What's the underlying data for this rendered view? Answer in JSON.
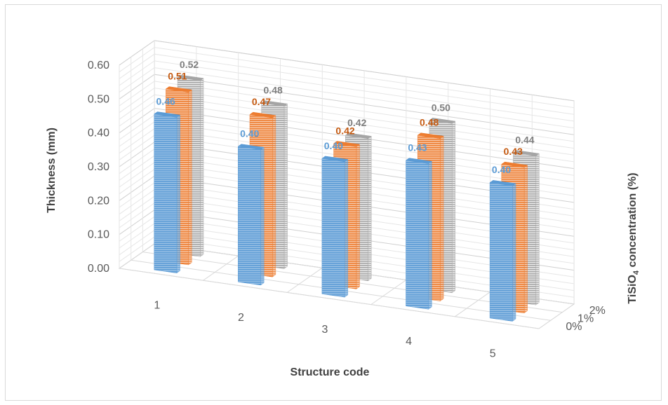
{
  "chart_data": {
    "type": "bar",
    "title": "",
    "xlabel": "Structure code",
    "ylabel": "Thickness (mm)",
    "zlabel": "TiSiO4 concentration  (%)",
    "zlabel_parts": {
      "pre": "TiSiO",
      "sub": "4",
      "post": " concentration  (%)"
    },
    "categories": [
      "1",
      "2",
      "3",
      "4",
      "5"
    ],
    "y_ticks": [
      "0.00",
      "0.10",
      "0.20",
      "0.30",
      "0.40",
      "0.50",
      "0.60"
    ],
    "ylim": [
      0,
      0.6
    ],
    "grid": true,
    "series": [
      {
        "name": "0%",
        "color": "#5b9bd5",
        "label_color": "#5b9bd5",
        "values": [
          0.46,
          0.4,
          0.4,
          0.43,
          0.4
        ],
        "labels": [
          "0.46",
          "0.40",
          "0.40",
          "0.43",
          "0.40"
        ]
      },
      {
        "name": "1%",
        "color": "#ed7d31",
        "label_color": "#c55a11",
        "values": [
          0.51,
          0.47,
          0.42,
          0.48,
          0.43
        ],
        "labels": [
          "0.51",
          "0.47",
          "0.42",
          "0.48",
          "0.43"
        ]
      },
      {
        "name": "2%",
        "color": "#a5a5a5",
        "label_color": "#7f7f7f",
        "values": [
          0.52,
          0.48,
          0.42,
          0.5,
          0.44
        ],
        "labels": [
          "0.52",
          "0.48",
          "0.42",
          "0.50",
          "0.44"
        ]
      }
    ]
  }
}
